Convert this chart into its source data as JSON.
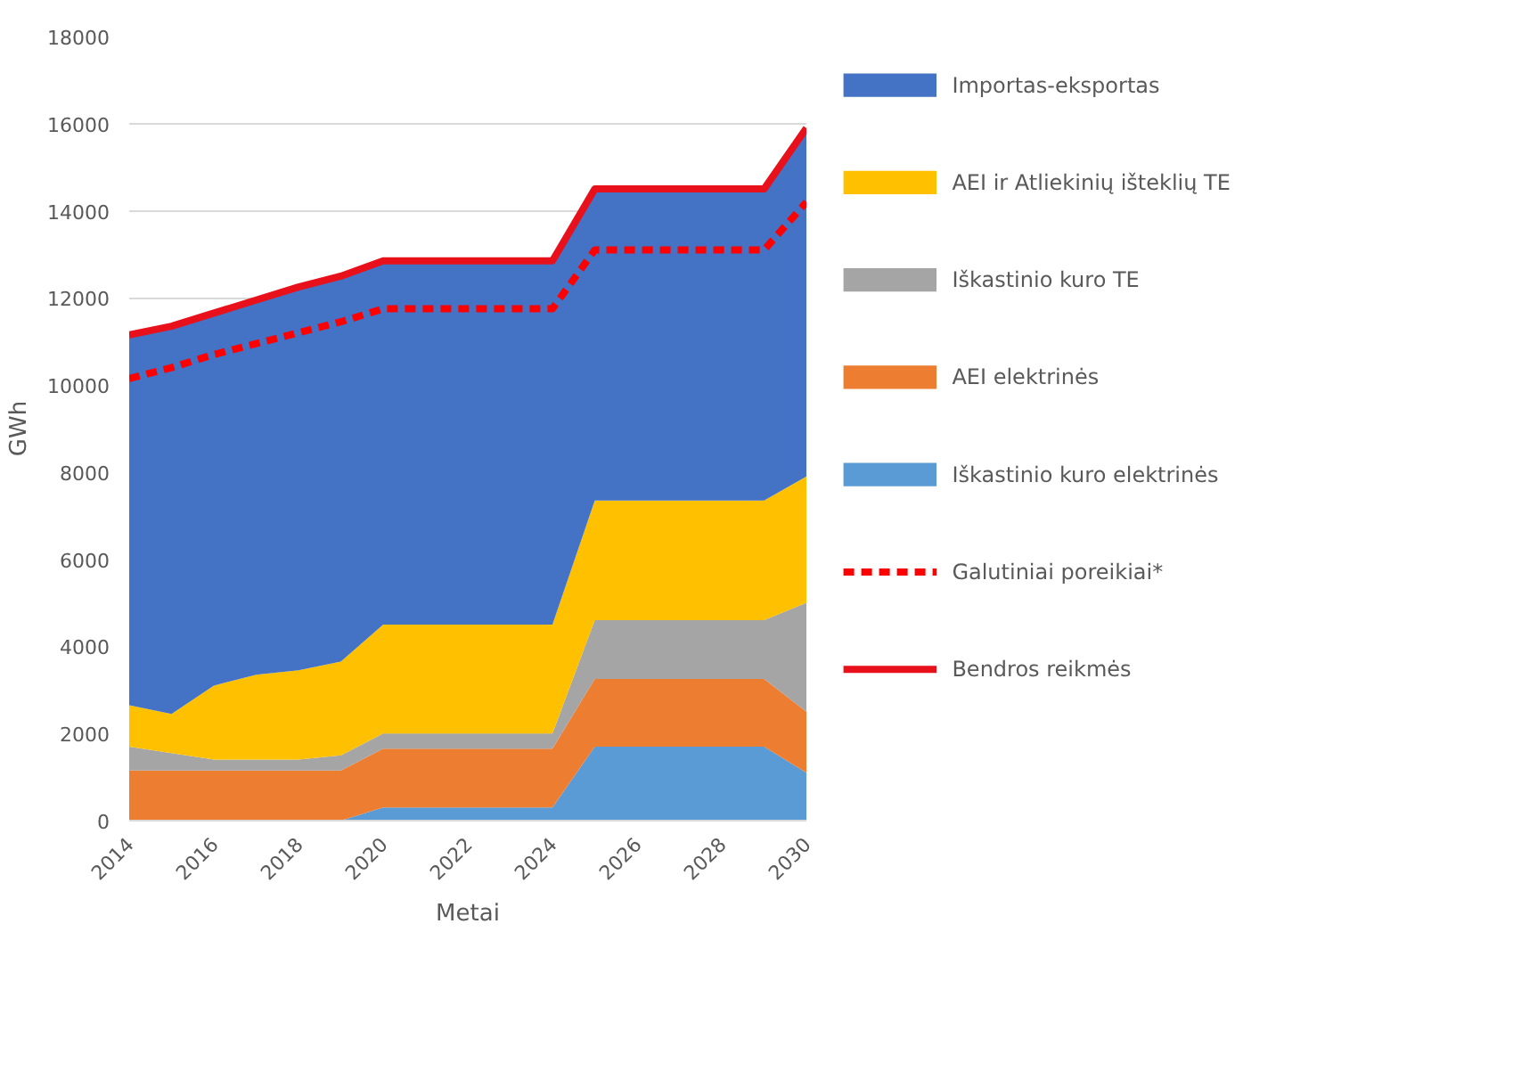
{
  "chart_data": {
    "type": "area",
    "stacked": true,
    "xlabel": "Metai",
    "ylabel": "GWh",
    "x": [
      2014,
      2015,
      2016,
      2017,
      2018,
      2019,
      2020,
      2021,
      2022,
      2023,
      2024,
      2025,
      2026,
      2027,
      2028,
      2029,
      2030
    ],
    "xlim": [
      2014,
      2030
    ],
    "xticks": [
      2014,
      2016,
      2018,
      2020,
      2022,
      2024,
      2026,
      2028,
      2030
    ],
    "ylim": [
      0,
      18000
    ],
    "yticks": [
      0,
      2000,
      4000,
      6000,
      8000,
      10000,
      12000,
      14000,
      16000,
      18000
    ],
    "grid": "y",
    "legend": "right",
    "series": [
      {
        "name": "Iškastinio kuro elektrinės",
        "color": "#5b9bd5",
        "values": [
          0,
          0,
          0,
          0,
          0,
          0,
          300,
          300,
          300,
          300,
          300,
          1700,
          1700,
          1700,
          1700,
          1700,
          1100
        ]
      },
      {
        "name": "AEI elektrinės",
        "color": "#ed7d31",
        "values": [
          1150,
          1150,
          1150,
          1150,
          1150,
          1150,
          1350,
          1350,
          1350,
          1350,
          1350,
          1550,
          1550,
          1550,
          1550,
          1550,
          1400
        ]
      },
      {
        "name": "Iškastinio kuro TE",
        "color": "#a5a5a5",
        "values": [
          550,
          400,
          250,
          250,
          250,
          350,
          350,
          350,
          350,
          350,
          350,
          1350,
          1350,
          1350,
          1350,
          1350,
          2500
        ]
      },
      {
        "name": "AEI ir Atliekinių išteklių  TE",
        "color": "#ffc000",
        "values": [
          950,
          900,
          1700,
          1950,
          2050,
          2150,
          2500,
          2500,
          2500,
          2500,
          2500,
          2750,
          2750,
          2750,
          2750,
          2750,
          2900
        ]
      },
      {
        "name": "Importas-eksportas",
        "color": "#4472c4",
        "values": [
          8500,
          8900,
          8550,
          8600,
          8800,
          8850,
          8350,
          8350,
          8350,
          8350,
          8350,
          7150,
          7150,
          7150,
          7150,
          7150,
          8000
        ]
      },
      {
        "name": "Galutiniai poreikiai*",
        "type": "line",
        "line_style": "dashed",
        "color": "#ff0000",
        "values": [
          10150,
          10400,
          10700,
          10950,
          11200,
          11450,
          11750,
          11750,
          11750,
          11750,
          11750,
          13100,
          13100,
          13100,
          13100,
          13100,
          14200
        ]
      },
      {
        "name": "Bendros reikmės",
        "type": "line",
        "line_style": "solid",
        "color": "#e8111b",
        "values": [
          11150,
          11350,
          11650,
          11950,
          12250,
          12500,
          12850,
          12850,
          12850,
          12850,
          12850,
          14500,
          14500,
          14500,
          14500,
          14500,
          15900
        ]
      }
    ]
  }
}
